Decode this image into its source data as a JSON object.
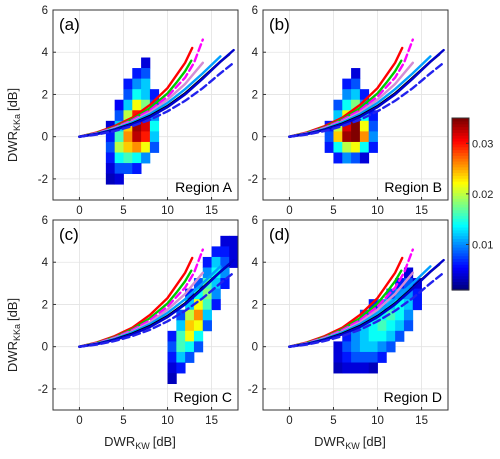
{
  "chart_data": {
    "type": "heatmap",
    "x_axis_label": "DWR",
    "x_axis_label_sub": "KW",
    "x_axis_unit": "[dB]",
    "y_axis_label": "DWR",
    "y_axis_label_sub": "KKa",
    "y_axis_unit": "[dB]",
    "xlim": [
      -3,
      18
    ],
    "ylim": [
      -3,
      6
    ],
    "x_ticks": [
      "0",
      "5",
      "10",
      "15"
    ],
    "y_ticks": [
      "-2",
      "0",
      "2",
      "4",
      "6"
    ],
    "grid": true,
    "colorbar": {
      "range": [
        0.001,
        0.035
      ],
      "ticks": [
        "0.01",
        "0.02",
        "0.03"
      ],
      "tick_values": [
        0.01,
        0.02,
        0.03
      ],
      "colormap": "jet"
    },
    "model_curves": [
      {
        "color": "#ff0000",
        "style": "solid",
        "x": [
          0,
          2,
          4,
          6,
          8,
          10,
          11,
          12,
          12.8
        ],
        "y": [
          0,
          0.2,
          0.5,
          0.9,
          1.5,
          2.3,
          2.9,
          3.5,
          4.2
        ]
      },
      {
        "color": "#00cc00",
        "style": "solid",
        "x": [
          0,
          2,
          4,
          6,
          8,
          10,
          11,
          12,
          12.7
        ],
        "y": [
          0,
          0.18,
          0.45,
          0.82,
          1.35,
          2.05,
          2.55,
          3.1,
          3.6
        ]
      },
      {
        "color": "#ff00ff",
        "style": "dashed",
        "x": [
          0,
          2,
          4,
          6,
          8,
          10,
          12,
          13,
          14
        ],
        "y": [
          0,
          0.17,
          0.43,
          0.78,
          1.25,
          1.9,
          2.8,
          3.5,
          4.6
        ]
      },
      {
        "color": "#d48cd4",
        "style": "solid",
        "x": [
          0,
          2,
          4,
          6,
          8,
          10,
          12,
          13,
          14
        ],
        "y": [
          0,
          0.15,
          0.4,
          0.72,
          1.15,
          1.75,
          2.5,
          3.0,
          3.5
        ]
      },
      {
        "color": "#00a0ff",
        "style": "solid",
        "x": [
          0,
          2,
          4,
          6,
          8,
          10,
          12,
          14,
          16
        ],
        "y": [
          0,
          0.14,
          0.37,
          0.68,
          1.07,
          1.6,
          2.25,
          3.0,
          3.8
        ]
      },
      {
        "color": "#000000",
        "style": "solid",
        "x": [
          0,
          2,
          4,
          6,
          8,
          10,
          12,
          14,
          16,
          17
        ],
        "y": [
          0,
          0.13,
          0.34,
          0.62,
          0.98,
          1.45,
          2.05,
          2.8,
          3.55,
          3.9
        ]
      },
      {
        "color": "#0000cc",
        "style": "solid",
        "x": [
          0,
          2,
          4,
          6,
          8,
          10,
          12,
          14,
          16,
          17.5
        ],
        "y": [
          0,
          0.12,
          0.32,
          0.58,
          0.93,
          1.4,
          2.0,
          2.75,
          3.55,
          4.1
        ]
      },
      {
        "color": "#2222ee",
        "style": "dashed",
        "x": [
          0,
          2,
          4,
          6,
          8,
          10,
          12,
          14,
          16,
          17.5
        ],
        "y": [
          0,
          0.1,
          0.27,
          0.5,
          0.8,
          1.2,
          1.7,
          2.3,
          3.0,
          3.5
        ]
      }
    ],
    "panels": [
      {
        "label": "(a)",
        "region": "Region A",
        "cells": [
          [
            7.5,
            3.5,
            0.004
          ],
          [
            6.5,
            3.0,
            0.006
          ],
          [
            7.5,
            3.0,
            0.008
          ],
          [
            5.5,
            2.5,
            0.006
          ],
          [
            6.5,
            2.5,
            0.01
          ],
          [
            7.5,
            2.5,
            0.012
          ],
          [
            5.5,
            2.0,
            0.008
          ],
          [
            6.5,
            2.0,
            0.014
          ],
          [
            7.5,
            2.0,
            0.012
          ],
          [
            8.5,
            2.0,
            0.006
          ],
          [
            4.5,
            1.5,
            0.005
          ],
          [
            5.5,
            1.5,
            0.012
          ],
          [
            6.5,
            1.5,
            0.022
          ],
          [
            7.5,
            1.5,
            0.018
          ],
          [
            8.5,
            1.5,
            0.008
          ],
          [
            4.5,
            1.0,
            0.008
          ],
          [
            5.5,
            1.0,
            0.02
          ],
          [
            6.5,
            1.0,
            0.03
          ],
          [
            7.5,
            1.0,
            0.028
          ],
          [
            8.5,
            1.0,
            0.01
          ],
          [
            3.5,
            0.5,
            0.004
          ],
          [
            4.5,
            0.5,
            0.012
          ],
          [
            5.5,
            0.5,
            0.024
          ],
          [
            6.5,
            0.5,
            0.034
          ],
          [
            7.5,
            0.5,
            0.032
          ],
          [
            8.5,
            0.5,
            0.014
          ],
          [
            3.5,
            0.0,
            0.006
          ],
          [
            4.5,
            0.0,
            0.016
          ],
          [
            5.5,
            0.0,
            0.026
          ],
          [
            6.5,
            0.0,
            0.033
          ],
          [
            7.5,
            0.0,
            0.03
          ],
          [
            8.5,
            0.0,
            0.012
          ],
          [
            3.5,
            -0.5,
            0.008
          ],
          [
            4.5,
            -0.5,
            0.02
          ],
          [
            5.5,
            -0.5,
            0.024
          ],
          [
            6.5,
            -0.5,
            0.026
          ],
          [
            7.5,
            -0.5,
            0.022
          ],
          [
            8.5,
            -0.5,
            0.008
          ],
          [
            3.5,
            -1.0,
            0.006
          ],
          [
            4.5,
            -1.0,
            0.014
          ],
          [
            5.5,
            -1.0,
            0.016
          ],
          [
            6.5,
            -1.0,
            0.014
          ],
          [
            7.5,
            -1.0,
            0.01
          ],
          [
            3.5,
            -1.5,
            0.004
          ],
          [
            4.5,
            -1.5,
            0.008
          ],
          [
            5.5,
            -1.5,
            0.008
          ],
          [
            6.5,
            -1.5,
            0.006
          ],
          [
            3.5,
            -2.0,
            0.003
          ],
          [
            4.5,
            -2.0,
            0.004
          ]
        ]
      },
      {
        "label": "(b)",
        "region": "Region B",
        "cells": [
          [
            7.5,
            3.0,
            0.004
          ],
          [
            6.5,
            2.5,
            0.006
          ],
          [
            7.5,
            2.5,
            0.008
          ],
          [
            6.5,
            2.0,
            0.01
          ],
          [
            7.5,
            2.0,
            0.012
          ],
          [
            8.5,
            2.0,
            0.006
          ],
          [
            5.5,
            1.5,
            0.008
          ],
          [
            6.5,
            1.5,
            0.014
          ],
          [
            7.5,
            1.5,
            0.018
          ],
          [
            8.5,
            1.5,
            0.01
          ],
          [
            5.5,
            1.0,
            0.012
          ],
          [
            6.5,
            1.0,
            0.022
          ],
          [
            7.5,
            1.0,
            0.028
          ],
          [
            8.5,
            1.0,
            0.014
          ],
          [
            9.5,
            1.0,
            0.006
          ],
          [
            4.5,
            0.5,
            0.006
          ],
          [
            5.5,
            0.5,
            0.02
          ],
          [
            6.5,
            0.5,
            0.032
          ],
          [
            7.5,
            0.5,
            0.035
          ],
          [
            8.5,
            0.5,
            0.022
          ],
          [
            9.5,
            0.5,
            0.008
          ],
          [
            4.5,
            0.0,
            0.008
          ],
          [
            5.5,
            0.0,
            0.024
          ],
          [
            6.5,
            0.0,
            0.034
          ],
          [
            7.5,
            0.0,
            0.035
          ],
          [
            8.5,
            0.0,
            0.026
          ],
          [
            9.5,
            0.0,
            0.01
          ],
          [
            4.5,
            -0.5,
            0.006
          ],
          [
            5.5,
            -0.5,
            0.014
          ],
          [
            6.5,
            -0.5,
            0.02
          ],
          [
            7.5,
            -0.5,
            0.022
          ],
          [
            8.5,
            -0.5,
            0.014
          ],
          [
            9.5,
            -0.5,
            0.006
          ],
          [
            5.5,
            -1.0,
            0.006
          ],
          [
            6.5,
            -1.0,
            0.01
          ],
          [
            7.5,
            -1.0,
            0.008
          ],
          [
            8.5,
            -1.0,
            0.004
          ]
        ]
      },
      {
        "label": "(c)",
        "region": "Region C",
        "cells": [
          [
            16.5,
            5.0,
            0.004
          ],
          [
            17.5,
            5.0,
            0.004
          ],
          [
            15.5,
            4.5,
            0.006
          ],
          [
            16.5,
            4.5,
            0.006
          ],
          [
            17.5,
            4.5,
            0.004
          ],
          [
            14.5,
            4.0,
            0.006
          ],
          [
            15.5,
            4.0,
            0.012
          ],
          [
            16.5,
            4.0,
            0.008
          ],
          [
            17.5,
            4.0,
            0.004
          ],
          [
            14.5,
            3.5,
            0.01
          ],
          [
            15.5,
            3.5,
            0.014
          ],
          [
            16.5,
            3.5,
            0.01
          ],
          [
            13.5,
            3.0,
            0.008
          ],
          [
            14.5,
            3.0,
            0.016
          ],
          [
            15.5,
            3.0,
            0.012
          ],
          [
            16.5,
            3.0,
            0.006
          ],
          [
            12.5,
            2.5,
            0.006
          ],
          [
            13.5,
            2.5,
            0.014
          ],
          [
            14.5,
            2.5,
            0.018
          ],
          [
            15.5,
            2.5,
            0.01
          ],
          [
            12.5,
            2.0,
            0.012
          ],
          [
            13.5,
            2.0,
            0.022
          ],
          [
            14.5,
            2.0,
            0.016
          ],
          [
            15.5,
            2.0,
            0.006
          ],
          [
            11.5,
            1.5,
            0.008
          ],
          [
            12.5,
            1.5,
            0.02
          ],
          [
            13.5,
            1.5,
            0.026
          ],
          [
            14.5,
            1.5,
            0.012
          ],
          [
            11.5,
            1.0,
            0.012
          ],
          [
            12.5,
            1.0,
            0.024
          ],
          [
            13.5,
            1.0,
            0.022
          ],
          [
            14.5,
            1.0,
            0.008
          ],
          [
            10.5,
            0.5,
            0.006
          ],
          [
            11.5,
            0.5,
            0.016
          ],
          [
            12.5,
            0.5,
            0.022
          ],
          [
            13.5,
            0.5,
            0.014
          ],
          [
            10.5,
            0.0,
            0.008
          ],
          [
            11.5,
            0.0,
            0.016
          ],
          [
            12.5,
            0.0,
            0.014
          ],
          [
            13.5,
            0.0,
            0.008
          ],
          [
            10.5,
            -0.5,
            0.006
          ],
          [
            11.5,
            -0.5,
            0.012
          ],
          [
            12.5,
            -0.5,
            0.008
          ],
          [
            10.5,
            -1.0,
            0.004
          ],
          [
            11.5,
            -1.0,
            0.006
          ],
          [
            10.5,
            -1.5,
            0.003
          ]
        ]
      },
      {
        "label": "(d)",
        "region": "Region D",
        "cells": [
          [
            13.5,
            3.5,
            0.004
          ],
          [
            12.5,
            3.0,
            0.006
          ],
          [
            13.5,
            3.0,
            0.008
          ],
          [
            14.5,
            3.0,
            0.004
          ],
          [
            11.5,
            2.5,
            0.008
          ],
          [
            12.5,
            2.5,
            0.01
          ],
          [
            13.5,
            2.5,
            0.01
          ],
          [
            14.5,
            2.5,
            0.006
          ],
          [
            9.5,
            2.0,
            0.006
          ],
          [
            10.5,
            2.0,
            0.01
          ],
          [
            11.5,
            2.0,
            0.012
          ],
          [
            12.5,
            2.0,
            0.014
          ],
          [
            13.5,
            2.0,
            0.012
          ],
          [
            14.5,
            2.0,
            0.006
          ],
          [
            8.5,
            1.5,
            0.008
          ],
          [
            9.5,
            1.5,
            0.012
          ],
          [
            10.5,
            1.5,
            0.014
          ],
          [
            11.5,
            1.5,
            0.016
          ],
          [
            12.5,
            1.5,
            0.014
          ],
          [
            13.5,
            1.5,
            0.01
          ],
          [
            7.5,
            1.0,
            0.008
          ],
          [
            8.5,
            1.0,
            0.012
          ],
          [
            9.5,
            1.0,
            0.014
          ],
          [
            10.5,
            1.0,
            0.016
          ],
          [
            11.5,
            1.0,
            0.014
          ],
          [
            12.5,
            1.0,
            0.012
          ],
          [
            13.5,
            1.0,
            0.008
          ],
          [
            6.5,
            0.5,
            0.006
          ],
          [
            7.5,
            0.5,
            0.01
          ],
          [
            8.5,
            0.5,
            0.012
          ],
          [
            9.5,
            0.5,
            0.014
          ],
          [
            10.5,
            0.5,
            0.014
          ],
          [
            11.5,
            0.5,
            0.012
          ],
          [
            12.5,
            0.5,
            0.008
          ],
          [
            5.5,
            0.0,
            0.004
          ],
          [
            6.5,
            0.0,
            0.008
          ],
          [
            7.5,
            0.0,
            0.01
          ],
          [
            8.5,
            0.0,
            0.012
          ],
          [
            9.5,
            0.0,
            0.012
          ],
          [
            10.5,
            0.0,
            0.01
          ],
          [
            11.5,
            0.0,
            0.008
          ],
          [
            5.5,
            -0.5,
            0.004
          ],
          [
            6.5,
            -0.5,
            0.006
          ],
          [
            7.5,
            -0.5,
            0.008
          ],
          [
            8.5,
            -0.5,
            0.008
          ],
          [
            9.5,
            -0.5,
            0.008
          ],
          [
            10.5,
            -0.5,
            0.006
          ],
          [
            5.5,
            -1.0,
            0.003
          ],
          [
            6.5,
            -1.0,
            0.004
          ],
          [
            7.5,
            -1.0,
            0.004
          ],
          [
            8.5,
            -1.0,
            0.004
          ],
          [
            9.5,
            -1.0,
            0.003
          ]
        ]
      }
    ]
  }
}
